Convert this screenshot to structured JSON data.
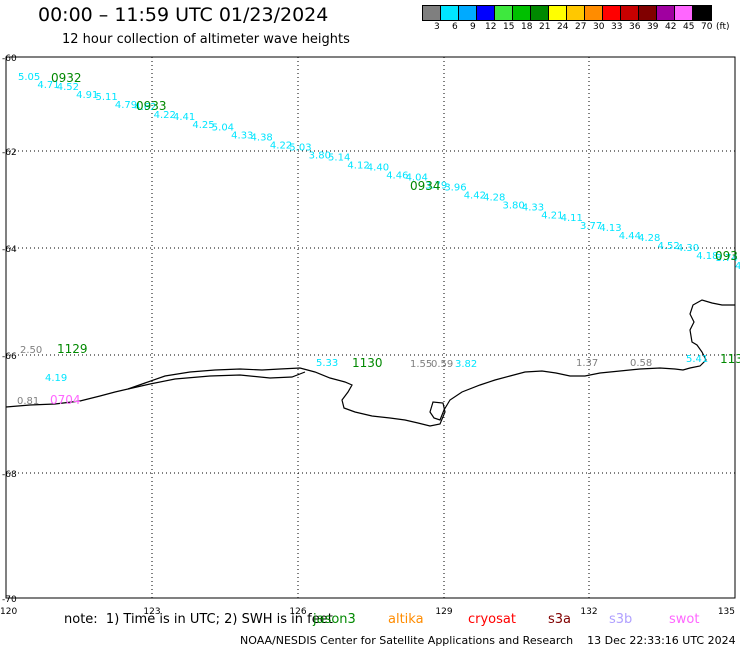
{
  "header": {
    "title": "00:00 – 11:59 UTC 01/23/2024",
    "subtitle": "12 hour collection of altimeter wave heights"
  },
  "colorbar": {
    "unit": "(ft)",
    "ticks": [
      "3",
      "6",
      "9",
      "12",
      "15",
      "18",
      "21",
      "24",
      "27",
      "30",
      "33",
      "36",
      "39",
      "42",
      "45",
      "70"
    ],
    "colors": [
      "#7f7f7f",
      "#00e5ff",
      "#00aaff",
      "#0000ff",
      "#3ee83e",
      "#00c000",
      "#008800",
      "#ffff00",
      "#ffc800",
      "#ff8c00",
      "#ff0000",
      "#c80000",
      "#800000",
      "#a000a0",
      "#ff66ff",
      "#000000"
    ]
  },
  "axes": {
    "lat_labels": [
      "-60",
      "-62",
      "-64",
      "-66",
      "-68",
      "-70"
    ],
    "lon_labels": [
      "120",
      "123",
      "126",
      "129",
      "132",
      "135"
    ]
  },
  "tracks": [
    {
      "sat": "jason3",
      "color": "#00e5ff",
      "labels": [
        "5.05",
        "4.71",
        "4.52",
        "4.91",
        "5.11",
        "4.79",
        "4.62",
        "4.22",
        "4.41",
        "4.25",
        "5.04",
        "4.33",
        "4.38",
        "4.22",
        "5.03",
        "3.80",
        "5.14",
        "4.12",
        "4.40",
        "4.46",
        "4.04",
        "3.79",
        "3.96",
        "4.42",
        "4.28",
        "3.80",
        "4.33",
        "4.21",
        "4.11",
        "3.77",
        "4.13",
        "4.44",
        "4.28",
        "4.52",
        "4.30",
        "4.18",
        "3.74",
        "4.3"
      ]
    },
    {
      "sat": "jason3",
      "color": "#00e5ff",
      "labels": [
        "4.19",
        "5.33",
        "3.82",
        "5.41"
      ]
    },
    {
      "sat": "other",
      "color": "#7f7f7f",
      "labels": [
        "2.50",
        "0.81",
        "1.55",
        "0.59",
        "1.37",
        "0.58"
      ]
    }
  ],
  "time_labels": [
    {
      "text": "0932",
      "color": "#008800"
    },
    {
      "text": "0933",
      "color": "#008800"
    },
    {
      "text": "0934",
      "color": "#008800"
    },
    {
      "text": "093",
      "color": "#008800"
    },
    {
      "text": "1129",
      "color": "#008800"
    },
    {
      "text": "1130",
      "color": "#008800"
    },
    {
      "text": "113",
      "color": "#008800"
    },
    {
      "text": "0704",
      "color": "#ff66ff"
    }
  ],
  "footer": {
    "note": "note:  1) Time is in UTC; 2) SWH is in feet",
    "satellites": [
      {
        "name": "jason3",
        "color": "#008800"
      },
      {
        "name": "altika",
        "color": "#ff8c00"
      },
      {
        "name": "cryosat",
        "color": "#ff0000"
      },
      {
        "name": "s3a",
        "color": "#800000"
      },
      {
        "name": "s3b",
        "color": "#b0a0ff"
      },
      {
        "name": "swot",
        "color": "#ff66ff"
      }
    ],
    "credit": "NOAA/NESDIS Center for Satellite Applications and Research    13 Dec 22:33:16 UTC 2024"
  }
}
